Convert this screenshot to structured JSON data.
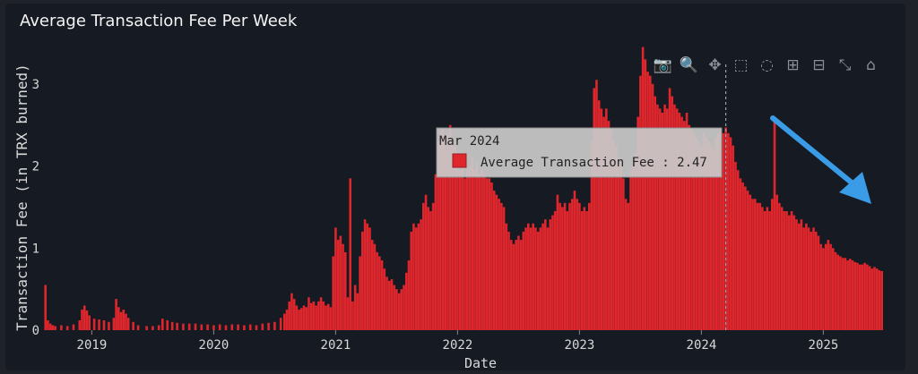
{
  "chart_data": {
    "type": "bar",
    "title": "Average Transaction Fee Per Week",
    "xlabel": "Date",
    "ylabel": "Transaction Fee (in TRX burned)",
    "ylim": [
      0,
      3.5
    ],
    "yticks": [
      0,
      1,
      2,
      3
    ],
    "xticks": [
      "2019",
      "2020",
      "2021",
      "2022",
      "2023",
      "2024",
      "2025"
    ],
    "x_range_years": [
      2018.6,
      2025.6
    ],
    "bar_color": "#e0262d",
    "grid": false,
    "series": [
      {
        "values": [
          [
            2018.62,
            0.55
          ],
          [
            2018.64,
            0.12
          ],
          [
            2018.66,
            0.08
          ],
          [
            2018.68,
            0.06
          ],
          [
            2018.7,
            0.05
          ],
          [
            2018.75,
            0.06
          ],
          [
            2018.8,
            0.05
          ],
          [
            2018.85,
            0.07
          ],
          [
            2018.9,
            0.12
          ],
          [
            2018.92,
            0.25
          ],
          [
            2018.94,
            0.3
          ],
          [
            2018.96,
            0.24
          ],
          [
            2018.98,
            0.18
          ],
          [
            2019.02,
            0.14
          ],
          [
            2019.06,
            0.13
          ],
          [
            2019.1,
            0.12
          ],
          [
            2019.14,
            0.1
          ],
          [
            2019.18,
            0.15
          ],
          [
            2019.2,
            0.38
          ],
          [
            2019.22,
            0.28
          ],
          [
            2019.24,
            0.22
          ],
          [
            2019.26,
            0.25
          ],
          [
            2019.28,
            0.2
          ],
          [
            2019.3,
            0.15
          ],
          [
            2019.34,
            0.1
          ],
          [
            2019.38,
            0.06
          ],
          [
            2019.45,
            0.05
          ],
          [
            2019.5,
            0.05
          ],
          [
            2019.55,
            0.06
          ],
          [
            2019.58,
            0.14
          ],
          [
            2019.62,
            0.12
          ],
          [
            2019.66,
            0.1
          ],
          [
            2019.7,
            0.09
          ],
          [
            2019.75,
            0.08
          ],
          [
            2019.8,
            0.08
          ],
          [
            2019.85,
            0.08
          ],
          [
            2019.9,
            0.07
          ],
          [
            2019.95,
            0.07
          ],
          [
            2020.0,
            0.06
          ],
          [
            2020.05,
            0.07
          ],
          [
            2020.1,
            0.06
          ],
          [
            2020.15,
            0.07
          ],
          [
            2020.2,
            0.07
          ],
          [
            2020.25,
            0.06
          ],
          [
            2020.3,
            0.07
          ],
          [
            2020.35,
            0.06
          ],
          [
            2020.4,
            0.08
          ],
          [
            2020.45,
            0.09
          ],
          [
            2020.5,
            0.1
          ],
          [
            2020.55,
            0.15
          ],
          [
            2020.58,
            0.2
          ],
          [
            2020.6,
            0.25
          ],
          [
            2020.62,
            0.35
          ],
          [
            2020.64,
            0.45
          ],
          [
            2020.66,
            0.38
          ],
          [
            2020.68,
            0.3
          ],
          [
            2020.7,
            0.25
          ],
          [
            2020.72,
            0.27
          ],
          [
            2020.74,
            0.3
          ],
          [
            2020.76,
            0.28
          ],
          [
            2020.78,
            0.4
          ],
          [
            2020.8,
            0.33
          ],
          [
            2020.82,
            0.35
          ],
          [
            2020.84,
            0.3
          ],
          [
            2020.86,
            0.35
          ],
          [
            2020.88,
            0.4
          ],
          [
            2020.9,
            0.35
          ],
          [
            2020.92,
            0.3
          ],
          [
            2020.94,
            0.32
          ],
          [
            2020.96,
            0.28
          ],
          [
            2020.98,
            0.9
          ],
          [
            2021.0,
            1.25
          ],
          [
            2021.02,
            1.1
          ],
          [
            2021.04,
            1.15
          ],
          [
            2021.06,
            1.05
          ],
          [
            2021.08,
            0.95
          ],
          [
            2021.1,
            0.4
          ],
          [
            2021.12,
            1.85
          ],
          [
            2021.14,
            0.35
          ],
          [
            2021.16,
            0.55
          ],
          [
            2021.18,
            0.45
          ],
          [
            2021.2,
            0.9
          ],
          [
            2021.22,
            1.2
          ],
          [
            2021.24,
            1.35
          ],
          [
            2021.26,
            1.3
          ],
          [
            2021.28,
            1.25
          ],
          [
            2021.3,
            1.1
          ],
          [
            2021.32,
            1.05
          ],
          [
            2021.34,
            0.95
          ],
          [
            2021.36,
            0.9
          ],
          [
            2021.38,
            0.85
          ],
          [
            2021.4,
            0.75
          ],
          [
            2021.42,
            0.65
          ],
          [
            2021.44,
            0.6
          ],
          [
            2021.46,
            0.62
          ],
          [
            2021.48,
            0.55
          ],
          [
            2021.5,
            0.5
          ],
          [
            2021.52,
            0.45
          ],
          [
            2021.54,
            0.5
          ],
          [
            2021.56,
            0.55
          ],
          [
            2021.58,
            0.7
          ],
          [
            2021.6,
            0.85
          ],
          [
            2021.62,
            1.2
          ],
          [
            2021.64,
            1.3
          ],
          [
            2021.66,
            1.25
          ],
          [
            2021.68,
            1.3
          ],
          [
            2021.7,
            1.35
          ],
          [
            2021.72,
            1.55
          ],
          [
            2021.74,
            1.65
          ],
          [
            2021.76,
            1.5
          ],
          [
            2021.78,
            1.45
          ],
          [
            2021.8,
            1.55
          ],
          [
            2021.82,
            1.9
          ],
          [
            2021.84,
            2.3
          ],
          [
            2021.86,
            2.4
          ],
          [
            2021.88,
            2.45
          ],
          [
            2021.9,
            2.35
          ],
          [
            2021.92,
            2.4
          ],
          [
            2021.94,
            2.5
          ],
          [
            2021.96,
            2.3
          ],
          [
            2021.98,
            2.25
          ],
          [
            2022.0,
            2.1
          ],
          [
            2022.02,
            1.95
          ],
          [
            2022.04,
            2.0
          ],
          [
            2022.06,
            1.85
          ],
          [
            2022.08,
            1.95
          ],
          [
            2022.1,
            2.0
          ],
          [
            2022.12,
            2.1
          ],
          [
            2022.14,
            1.95
          ],
          [
            2022.16,
            2.05
          ],
          [
            2022.18,
            1.9
          ],
          [
            2022.2,
            1.95
          ],
          [
            2022.22,
            1.9
          ],
          [
            2022.24,
            1.85
          ],
          [
            2022.26,
            1.85
          ],
          [
            2022.28,
            1.8
          ],
          [
            2022.3,
            1.7
          ],
          [
            2022.32,
            1.65
          ],
          [
            2022.34,
            1.6
          ],
          [
            2022.36,
            1.55
          ],
          [
            2022.38,
            1.5
          ],
          [
            2022.4,
            1.3
          ],
          [
            2022.42,
            1.2
          ],
          [
            2022.44,
            1.1
          ],
          [
            2022.46,
            1.05
          ],
          [
            2022.48,
            1.1
          ],
          [
            2022.5,
            1.15
          ],
          [
            2022.52,
            1.1
          ],
          [
            2022.54,
            1.2
          ],
          [
            2022.56,
            1.25
          ],
          [
            2022.58,
            1.3
          ],
          [
            2022.6,
            1.25
          ],
          [
            2022.62,
            1.3
          ],
          [
            2022.64,
            1.25
          ],
          [
            2022.66,
            1.2
          ],
          [
            2022.68,
            1.25
          ],
          [
            2022.7,
            1.3
          ],
          [
            2022.72,
            1.35
          ],
          [
            2022.74,
            1.25
          ],
          [
            2022.76,
            1.35
          ],
          [
            2022.78,
            1.4
          ],
          [
            2022.8,
            1.45
          ],
          [
            2022.82,
            1.65
          ],
          [
            2022.84,
            1.55
          ],
          [
            2022.86,
            1.5
          ],
          [
            2022.88,
            1.55
          ],
          [
            2022.9,
            1.45
          ],
          [
            2022.92,
            1.55
          ],
          [
            2022.94,
            1.6
          ],
          [
            2022.96,
            1.7
          ],
          [
            2022.98,
            1.6
          ],
          [
            2023.0,
            1.55
          ],
          [
            2023.02,
            1.45
          ],
          [
            2023.04,
            1.5
          ],
          [
            2023.06,
            1.45
          ],
          [
            2023.08,
            1.55
          ],
          [
            2023.1,
            2.3
          ],
          [
            2023.12,
            2.95
          ],
          [
            2023.14,
            3.05
          ],
          [
            2023.16,
            2.8
          ],
          [
            2023.18,
            2.7
          ],
          [
            2023.2,
            2.6
          ],
          [
            2023.22,
            2.7
          ],
          [
            2023.24,
            2.55
          ],
          [
            2023.26,
            2.45
          ],
          [
            2023.28,
            2.3
          ],
          [
            2023.3,
            2.25
          ],
          [
            2023.32,
            2.1
          ],
          [
            2023.34,
            2.05
          ],
          [
            2023.36,
            1.85
          ],
          [
            2023.38,
            1.6
          ],
          [
            2023.4,
            1.55
          ],
          [
            2023.42,
            1.95
          ],
          [
            2023.44,
            2.05
          ],
          [
            2023.46,
            2.15
          ],
          [
            2023.48,
            2.6
          ],
          [
            2023.5,
            3.1
          ],
          [
            2023.52,
            3.45
          ],
          [
            2023.54,
            3.3
          ],
          [
            2023.56,
            3.15
          ],
          [
            2023.58,
            3.1
          ],
          [
            2023.6,
            3.0
          ],
          [
            2023.62,
            2.85
          ],
          [
            2023.64,
            2.75
          ],
          [
            2023.66,
            2.7
          ],
          [
            2023.68,
            2.65
          ],
          [
            2023.7,
            2.75
          ],
          [
            2023.72,
            2.7
          ],
          [
            2023.74,
            2.95
          ],
          [
            2023.76,
            2.85
          ],
          [
            2023.78,
            2.75
          ],
          [
            2023.8,
            2.7
          ],
          [
            2023.82,
            2.65
          ],
          [
            2023.84,
            2.6
          ],
          [
            2023.86,
            2.55
          ],
          [
            2023.88,
            2.65
          ],
          [
            2023.9,
            2.5
          ],
          [
            2023.92,
            2.45
          ],
          [
            2023.94,
            2.4
          ],
          [
            2023.96,
            2.35
          ],
          [
            2023.98,
            2.3
          ],
          [
            2024.0,
            2.25
          ],
          [
            2024.02,
            2.4
          ],
          [
            2024.04,
            2.35
          ],
          [
            2024.06,
            2.3
          ],
          [
            2024.08,
            2.25
          ],
          [
            2024.1,
            2.2
          ],
          [
            2024.12,
            2.35
          ],
          [
            2024.14,
            2.4
          ],
          [
            2024.16,
            2.45
          ],
          [
            2024.18,
            2.4
          ],
          [
            2024.2,
            2.47
          ],
          [
            2024.22,
            2.4
          ],
          [
            2024.24,
            2.35
          ],
          [
            2024.26,
            2.25
          ],
          [
            2024.28,
            2.05
          ],
          [
            2024.3,
            1.95
          ],
          [
            2024.32,
            1.85
          ],
          [
            2024.34,
            1.8
          ],
          [
            2024.36,
            1.75
          ],
          [
            2024.38,
            1.7
          ],
          [
            2024.4,
            1.65
          ],
          [
            2024.42,
            1.6
          ],
          [
            2024.44,
            1.6
          ],
          [
            2024.46,
            1.55
          ],
          [
            2024.48,
            1.55
          ],
          [
            2024.5,
            1.5
          ],
          [
            2024.52,
            1.45
          ],
          [
            2024.54,
            1.5
          ],
          [
            2024.56,
            1.45
          ],
          [
            2024.58,
            1.6
          ],
          [
            2024.6,
            2.6
          ],
          [
            2024.62,
            1.65
          ],
          [
            2024.64,
            1.55
          ],
          [
            2024.66,
            1.5
          ],
          [
            2024.68,
            1.45
          ],
          [
            2024.7,
            1.45
          ],
          [
            2024.72,
            1.4
          ],
          [
            2024.74,
            1.45
          ],
          [
            2024.76,
            1.4
          ],
          [
            2024.78,
            1.35
          ],
          [
            2024.8,
            1.3
          ],
          [
            2024.82,
            1.35
          ],
          [
            2024.84,
            1.25
          ],
          [
            2024.86,
            1.3
          ],
          [
            2024.88,
            1.25
          ],
          [
            2024.9,
            1.2
          ],
          [
            2024.92,
            1.25
          ],
          [
            2024.94,
            1.2
          ],
          [
            2024.96,
            1.15
          ],
          [
            2024.98,
            1.05
          ],
          [
            2025.0,
            1.0
          ],
          [
            2025.02,
            1.05
          ],
          [
            2025.04,
            1.1
          ],
          [
            2025.06,
            1.05
          ],
          [
            2025.08,
            1.0
          ],
          [
            2025.1,
            0.95
          ],
          [
            2025.12,
            0.92
          ],
          [
            2025.14,
            0.9
          ],
          [
            2025.16,
            0.88
          ],
          [
            2025.18,
            0.88
          ],
          [
            2025.2,
            0.85
          ],
          [
            2025.22,
            0.87
          ],
          [
            2025.24,
            0.85
          ],
          [
            2025.26,
            0.83
          ],
          [
            2025.28,
            0.82
          ],
          [
            2025.3,
            0.8
          ],
          [
            2025.32,
            0.8
          ],
          [
            2025.34,
            0.82
          ],
          [
            2025.36,
            0.8
          ],
          [
            2025.38,
            0.78
          ],
          [
            2025.4,
            0.75
          ],
          [
            2025.42,
            0.77
          ],
          [
            2025.44,
            0.75
          ],
          [
            2025.46,
            0.73
          ],
          [
            2025.48,
            0.72
          ]
        ]
      }
    ],
    "hover": {
      "x_year": 2024.2,
      "date_label": "Mar 2024",
      "series_label": "Average Transaction Fee",
      "value_text": "2.47"
    },
    "annotation": {
      "type": "arrow",
      "color": "#3a9be6",
      "direction": "down-right"
    }
  },
  "modebar": {
    "icons": [
      "camera-icon",
      "zoom-icon",
      "pan-icon",
      "box-select-icon",
      "lasso-icon",
      "zoom-in-icon",
      "zoom-out-icon",
      "autoscale-icon",
      "reset-home-icon"
    ]
  }
}
